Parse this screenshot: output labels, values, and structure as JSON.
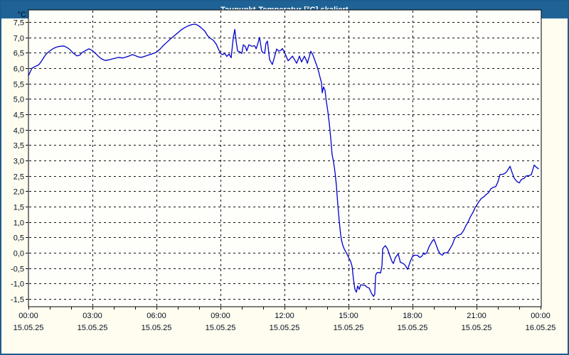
{
  "window": {
    "title": "Taupunkt-Temperatur [°C] skaliert"
  },
  "colors": {
    "titlebar_bg": "#1F6396",
    "outer_border": "#1D5C8E",
    "page_bg": "#FFFDF0",
    "plot_bg": "#FEFEFB",
    "plot_border": "#000000",
    "grid": "#111111",
    "line": "#0000CC",
    "label_text": "#06101E"
  },
  "chart_data": {
    "type": "line",
    "title": "Taupunkt-Temperatur [°C] skaliert",
    "unit_label": "°C",
    "xlabel": "",
    "ylabel": "°C",
    "grid": true,
    "legend": "none",
    "ylim": [
      -1.5,
      7.5
    ],
    "y_tick_step": 0.5,
    "y_ticks": [
      {
        "v": 7.5,
        "label": "7,5"
      },
      {
        "v": 7.0,
        "label": "7,0"
      },
      {
        "v": 6.5,
        "label": "6,5"
      },
      {
        "v": 6.0,
        "label": "6,0"
      },
      {
        "v": 5.5,
        "label": "5,5"
      },
      {
        "v": 5.0,
        "label": "5,0"
      },
      {
        "v": 4.5,
        "label": "4,5"
      },
      {
        "v": 4.0,
        "label": "4,0"
      },
      {
        "v": 3.5,
        "label": "3,5"
      },
      {
        "v": 3.0,
        "label": "3,0"
      },
      {
        "v": 2.5,
        "label": "2,5"
      },
      {
        "v": 2.0,
        "label": "2,0"
      },
      {
        "v": 1.5,
        "label": "1,5"
      },
      {
        "v": 1.0,
        "label": "1,0"
      },
      {
        "v": 0.5,
        "label": "0,5"
      },
      {
        "v": 0.0,
        "label": "0,0"
      },
      {
        "v": -0.5,
        "label": "-0,5"
      },
      {
        "v": -1.0,
        "label": "-1,0"
      },
      {
        "v": -1.5,
        "label": "-1,5"
      }
    ],
    "x_ticks": [
      {
        "h": 0,
        "time": "00:00",
        "date": "15.05.25"
      },
      {
        "h": 3,
        "time": "03:00",
        "date": "15.05.25"
      },
      {
        "h": 6,
        "time": "06:00",
        "date": "15.05.25"
      },
      {
        "h": 9,
        "time": "09:00",
        "date": "15.05.25"
      },
      {
        "h": 12,
        "time": "12:00",
        "date": "15.05.25"
      },
      {
        "h": 15,
        "time": "15:00",
        "date": "15.05.25"
      },
      {
        "h": 18,
        "time": "18:00",
        "date": "15.05.25"
      },
      {
        "h": 21,
        "time": "21:00",
        "date": "15.05.25"
      },
      {
        "h": 24,
        "time": "00:00",
        "date": "16.05.25"
      }
    ],
    "x_minor_tick_hours": 1,
    "series": [
      {
        "name": "Taupunkt-Temperatur",
        "points": [
          [
            0.0,
            5.75
          ],
          [
            0.08,
            5.88
          ],
          [
            0.17,
            6.0
          ],
          [
            0.27,
            6.04
          ],
          [
            0.4,
            6.08
          ],
          [
            0.5,
            6.12
          ],
          [
            0.62,
            6.24
          ],
          [
            0.75,
            6.38
          ],
          [
            0.83,
            6.46
          ],
          [
            0.95,
            6.53
          ],
          [
            1.08,
            6.6
          ],
          [
            1.2,
            6.65
          ],
          [
            1.33,
            6.69
          ],
          [
            1.5,
            6.71
          ],
          [
            1.67,
            6.72
          ],
          [
            1.83,
            6.66
          ],
          [
            1.95,
            6.6
          ],
          [
            2.08,
            6.5
          ],
          [
            2.17,
            6.45
          ],
          [
            2.27,
            6.4
          ],
          [
            2.4,
            6.42
          ],
          [
            2.5,
            6.5
          ],
          [
            2.6,
            6.54
          ],
          [
            2.73,
            6.59
          ],
          [
            2.83,
            6.63
          ],
          [
            3.0,
            6.57
          ],
          [
            3.13,
            6.49
          ],
          [
            3.27,
            6.39
          ],
          [
            3.43,
            6.3
          ],
          [
            3.6,
            6.25
          ],
          [
            3.77,
            6.27
          ],
          [
            3.93,
            6.3
          ],
          [
            4.1,
            6.33
          ],
          [
            4.23,
            6.35
          ],
          [
            4.4,
            6.33
          ],
          [
            4.57,
            6.36
          ],
          [
            4.73,
            6.4
          ],
          [
            4.87,
            6.44
          ],
          [
            5.0,
            6.41
          ],
          [
            5.13,
            6.37
          ],
          [
            5.3,
            6.35
          ],
          [
            5.43,
            6.38
          ],
          [
            5.6,
            6.42
          ],
          [
            5.77,
            6.46
          ],
          [
            5.9,
            6.49
          ],
          [
            6.0,
            6.52
          ],
          [
            6.17,
            6.62
          ],
          [
            6.33,
            6.74
          ],
          [
            6.5,
            6.85
          ],
          [
            6.67,
            6.96
          ],
          [
            6.83,
            7.05
          ],
          [
            7.0,
            7.15
          ],
          [
            7.17,
            7.25
          ],
          [
            7.33,
            7.32
          ],
          [
            7.5,
            7.38
          ],
          [
            7.67,
            7.42
          ],
          [
            7.83,
            7.43
          ],
          [
            7.97,
            7.38
          ],
          [
            8.1,
            7.31
          ],
          [
            8.27,
            7.2
          ],
          [
            8.4,
            7.05
          ],
          [
            8.53,
            6.97
          ],
          [
            8.67,
            6.9
          ],
          [
            8.8,
            6.78
          ],
          [
            8.93,
            6.58
          ],
          [
            9.0,
            6.48
          ],
          [
            9.1,
            6.44
          ],
          [
            9.2,
            6.48
          ],
          [
            9.3,
            6.38
          ],
          [
            9.4,
            6.46
          ],
          [
            9.5,
            6.34
          ],
          [
            9.6,
            7.0
          ],
          [
            9.67,
            7.26
          ],
          [
            9.73,
            6.9
          ],
          [
            9.8,
            6.56
          ],
          [
            9.93,
            6.52
          ],
          [
            10.0,
            6.48
          ],
          [
            10.07,
            6.76
          ],
          [
            10.17,
            6.7
          ],
          [
            10.23,
            6.56
          ],
          [
            10.33,
            6.76
          ],
          [
            10.47,
            6.71
          ],
          [
            10.6,
            6.73
          ],
          [
            10.67,
            6.63
          ],
          [
            10.73,
            6.75
          ],
          [
            10.83,
            7.0
          ],
          [
            10.93,
            6.56
          ],
          [
            11.0,
            6.5
          ],
          [
            11.07,
            6.48
          ],
          [
            11.13,
            6.8
          ],
          [
            11.2,
            6.88
          ],
          [
            11.3,
            6.28
          ],
          [
            11.43,
            6.12
          ],
          [
            11.53,
            6.36
          ],
          [
            11.63,
            6.62
          ],
          [
            11.73,
            6.55
          ],
          [
            11.83,
            6.58
          ],
          [
            11.9,
            6.64
          ],
          [
            12.0,
            6.51
          ],
          [
            12.1,
            6.35
          ],
          [
            12.17,
            6.24
          ],
          [
            12.23,
            6.28
          ],
          [
            12.37,
            6.39
          ],
          [
            12.47,
            6.28
          ],
          [
            12.57,
            6.16
          ],
          [
            12.7,
            6.39
          ],
          [
            12.8,
            6.2
          ],
          [
            12.93,
            6.39
          ],
          [
            13.03,
            6.25
          ],
          [
            13.07,
            6.16
          ],
          [
            13.13,
            6.3
          ],
          [
            13.23,
            6.55
          ],
          [
            13.33,
            6.43
          ],
          [
            13.43,
            6.24
          ],
          [
            13.53,
            6.05
          ],
          [
            13.6,
            5.89
          ],
          [
            13.67,
            5.69
          ],
          [
            13.73,
            5.54
          ],
          [
            13.77,
            5.2
          ],
          [
            13.83,
            5.39
          ],
          [
            13.9,
            5.28
          ],
          [
            13.95,
            4.97
          ],
          [
            14.03,
            4.6
          ],
          [
            14.1,
            4.2
          ],
          [
            14.17,
            3.7
          ],
          [
            14.23,
            3.2
          ],
          [
            14.3,
            2.95
          ],
          [
            14.37,
            2.6
          ],
          [
            14.43,
            2.2
          ],
          [
            14.5,
            1.55
          ],
          [
            14.57,
            1.0
          ],
          [
            14.63,
            0.6
          ],
          [
            14.67,
            0.42
          ],
          [
            14.73,
            0.25
          ],
          [
            14.8,
            0.12
          ],
          [
            14.9,
            0.0
          ],
          [
            15.0,
            -0.15
          ],
          [
            15.1,
            -0.28
          ],
          [
            15.17,
            -0.45
          ],
          [
            15.23,
            -0.85
          ],
          [
            15.3,
            -1.19
          ],
          [
            15.37,
            -1.28
          ],
          [
            15.43,
            -1.08
          ],
          [
            15.5,
            -1.19
          ],
          [
            15.57,
            -1.04
          ],
          [
            15.67,
            -1.05
          ],
          [
            15.77,
            -1.06
          ],
          [
            15.87,
            -1.12
          ],
          [
            15.97,
            -1.15
          ],
          [
            16.07,
            -1.31
          ],
          [
            16.17,
            -1.42
          ],
          [
            16.23,
            -1.35
          ],
          [
            16.27,
            -0.73
          ],
          [
            16.33,
            -0.65
          ],
          [
            16.43,
            -0.64
          ],
          [
            16.5,
            -0.66
          ],
          [
            16.57,
            -0.42
          ],
          [
            16.6,
            0.12
          ],
          [
            16.67,
            0.19
          ],
          [
            16.73,
            0.23
          ],
          [
            16.83,
            0.12
          ],
          [
            16.93,
            -0.08
          ],
          [
            17.03,
            -0.27
          ],
          [
            17.1,
            -0.35
          ],
          [
            17.2,
            -0.15
          ],
          [
            17.33,
            -0.04
          ],
          [
            17.43,
            -0.31
          ],
          [
            17.57,
            -0.35
          ],
          [
            17.67,
            -0.42
          ],
          [
            17.77,
            -0.54
          ],
          [
            17.9,
            -0.27
          ],
          [
            18.0,
            -0.12
          ],
          [
            18.1,
            -0.08
          ],
          [
            18.23,
            -0.08
          ],
          [
            18.33,
            -0.15
          ],
          [
            18.43,
            -0.12
          ],
          [
            18.53,
            0.0
          ],
          [
            18.57,
            -0.05
          ],
          [
            18.67,
            0.0
          ],
          [
            18.77,
            0.19
          ],
          [
            18.9,
            0.35
          ],
          [
            19.0,
            0.44
          ],
          [
            19.1,
            0.27
          ],
          [
            19.2,
            0.08
          ],
          [
            19.3,
            -0.04
          ],
          [
            19.4,
            -0.08
          ],
          [
            19.5,
            0.0
          ],
          [
            19.63,
            0.0
          ],
          [
            19.73,
            0.1
          ],
          [
            19.87,
            0.27
          ],
          [
            19.97,
            0.46
          ],
          [
            20.07,
            0.54
          ],
          [
            20.17,
            0.58
          ],
          [
            20.27,
            0.6
          ],
          [
            20.4,
            0.73
          ],
          [
            20.5,
            0.88
          ],
          [
            20.6,
            1.0
          ],
          [
            20.73,
            1.19
          ],
          [
            20.83,
            1.31
          ],
          [
            20.93,
            1.46
          ],
          [
            21.0,
            1.54
          ],
          [
            21.1,
            1.65
          ],
          [
            21.23,
            1.77
          ],
          [
            21.33,
            1.81
          ],
          [
            21.43,
            1.88
          ],
          [
            21.57,
            1.96
          ],
          [
            21.67,
            2.08
          ],
          [
            21.77,
            2.12
          ],
          [
            21.9,
            2.15
          ],
          [
            22.0,
            2.3
          ],
          [
            22.1,
            2.54
          ],
          [
            22.23,
            2.55
          ],
          [
            22.33,
            2.58
          ],
          [
            22.43,
            2.65
          ],
          [
            22.57,
            2.81
          ],
          [
            22.67,
            2.6
          ],
          [
            22.77,
            2.42
          ],
          [
            22.9,
            2.31
          ],
          [
            23.0,
            2.27
          ],
          [
            23.1,
            2.38
          ],
          [
            23.23,
            2.42
          ],
          [
            23.33,
            2.5
          ],
          [
            23.43,
            2.5
          ],
          [
            23.57,
            2.54
          ],
          [
            23.7,
            2.85
          ],
          [
            23.8,
            2.78
          ],
          [
            23.9,
            2.73
          ]
        ]
      }
    ]
  }
}
